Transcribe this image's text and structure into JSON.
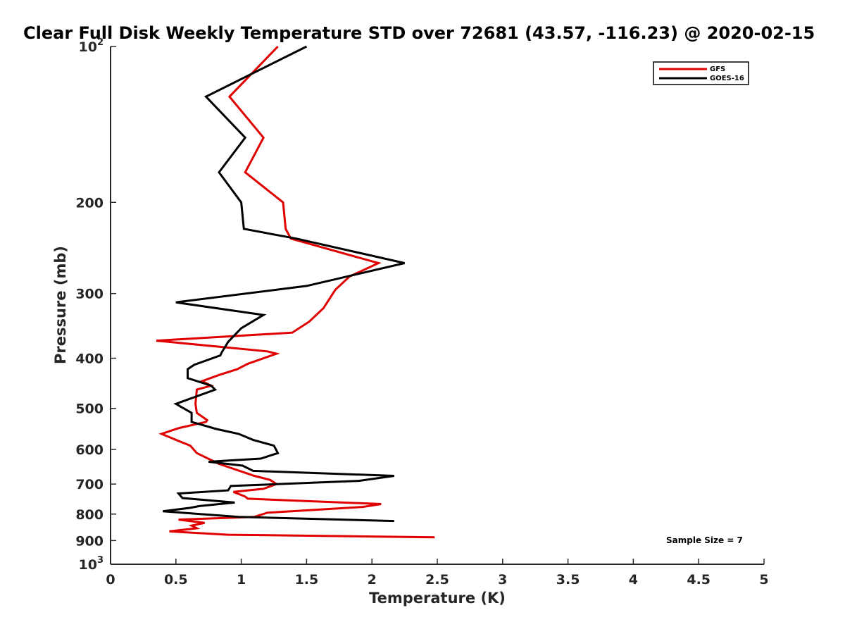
{
  "chart_data": {
    "type": "line",
    "title": "Clear Full Disk Weekly Temperature STD over 72681 (43.57, -116.23) @ 2020-02-15",
    "xlabel": "Temperature (K)",
    "ylabel": "Pressure (mb)",
    "xlim": [
      0,
      5
    ],
    "ylim": [
      100,
      1000
    ],
    "y_scale": "log",
    "y_reversed": true,
    "x_ticks": [
      "0",
      "0.5",
      "1",
      "1.5",
      "2",
      "2.5",
      "3",
      "3.5",
      "4",
      "4.5",
      "5"
    ],
    "y_ticks": [
      {
        "value": 100,
        "label": "10",
        "sup": "2"
      },
      {
        "value": 200,
        "label": "200",
        "sup": ""
      },
      {
        "value": 300,
        "label": "300",
        "sup": ""
      },
      {
        "value": 400,
        "label": "400",
        "sup": ""
      },
      {
        "value": 500,
        "label": "500",
        "sup": ""
      },
      {
        "value": 600,
        "label": "600",
        "sup": ""
      },
      {
        "value": 700,
        "label": "700",
        "sup": ""
      },
      {
        "value": 800,
        "label": "800",
        "sup": ""
      },
      {
        "value": 900,
        "label": "900",
        "sup": ""
      },
      {
        "value": 1000,
        "label": "10",
        "sup": "3"
      }
    ],
    "legend_position": "top-right",
    "grid": false,
    "series": [
      {
        "name": "GFS",
        "color": "#e00000",
        "points": [
          [
            1.28,
            100
          ],
          [
            0.91,
            125
          ],
          [
            1.17,
            150
          ],
          [
            1.03,
            175
          ],
          [
            1.32,
            200
          ],
          [
            1.34,
            225
          ],
          [
            1.38,
            235
          ],
          [
            2.05,
            262
          ],
          [
            1.83,
            278
          ],
          [
            1.72,
            295
          ],
          [
            1.63,
            320
          ],
          [
            1.52,
            340
          ],
          [
            1.39,
            357
          ],
          [
            0.35,
            370
          ],
          [
            1.2,
            388
          ],
          [
            1.27,
            392
          ],
          [
            1.05,
            410
          ],
          [
            0.97,
            420
          ],
          [
            0.83,
            431
          ],
          [
            0.7,
            443
          ],
          [
            0.77,
            452
          ],
          [
            0.66,
            460
          ],
          [
            0.65,
            490
          ],
          [
            0.66,
            510
          ],
          [
            0.74,
            527
          ],
          [
            0.73,
            531
          ],
          [
            0.52,
            546
          ],
          [
            0.39,
            560
          ],
          [
            0.5,
            575
          ],
          [
            0.61,
            590
          ],
          [
            0.66,
            610
          ],
          [
            0.83,
            640
          ],
          [
            1.1,
            675
          ],
          [
            1.22,
            687
          ],
          [
            1.27,
            700
          ],
          [
            1.17,
            715
          ],
          [
            0.94,
            725
          ],
          [
            1.03,
            740
          ],
          [
            1.05,
            747
          ],
          [
            2.07,
            765
          ],
          [
            1.93,
            775
          ],
          [
            1.2,
            795
          ],
          [
            1.1,
            810
          ],
          [
            0.52,
            820
          ],
          [
            0.72,
            832
          ],
          [
            0.62,
            842
          ],
          [
            0.66,
            852
          ],
          [
            0.45,
            864
          ],
          [
            0.9,
            877
          ],
          [
            2.48,
            887
          ]
        ]
      },
      {
        "name": "GOES-16",
        "color": "#000000",
        "points": [
          [
            1.5,
            100
          ],
          [
            0.73,
            125
          ],
          [
            1.03,
            150
          ],
          [
            0.83,
            175
          ],
          [
            1.0,
            200
          ],
          [
            1.02,
            225
          ],
          [
            1.42,
            235
          ],
          [
            2.25,
            262
          ],
          [
            1.5,
            290
          ],
          [
            0.5,
            312
          ],
          [
            1.17,
            330
          ],
          [
            1.0,
            350
          ],
          [
            0.9,
            372
          ],
          [
            0.85,
            390
          ],
          [
            0.84,
            395
          ],
          [
            0.64,
            412
          ],
          [
            0.59,
            420
          ],
          [
            0.59,
            437
          ],
          [
            0.77,
            452
          ],
          [
            0.8,
            460
          ],
          [
            0.5,
            490
          ],
          [
            0.62,
            510
          ],
          [
            0.62,
            531
          ],
          [
            0.81,
            548
          ],
          [
            0.98,
            560
          ],
          [
            1.09,
            575
          ],
          [
            1.25,
            590
          ],
          [
            1.28,
            610
          ],
          [
            1.15,
            625
          ],
          [
            0.75,
            634
          ],
          [
            1.01,
            645
          ],
          [
            1.09,
            660
          ],
          [
            2.17,
            675
          ],
          [
            1.9,
            690
          ],
          [
            0.92,
            706
          ],
          [
            0.9,
            720
          ],
          [
            0.52,
            730
          ],
          [
            0.55,
            745
          ],
          [
            0.95,
            760
          ],
          [
            0.68,
            772
          ],
          [
            0.61,
            778
          ],
          [
            0.4,
            790
          ],
          [
            0.98,
            810
          ],
          [
            2.17,
            825
          ]
        ]
      }
    ],
    "annotation": "Sample Size = 7"
  }
}
